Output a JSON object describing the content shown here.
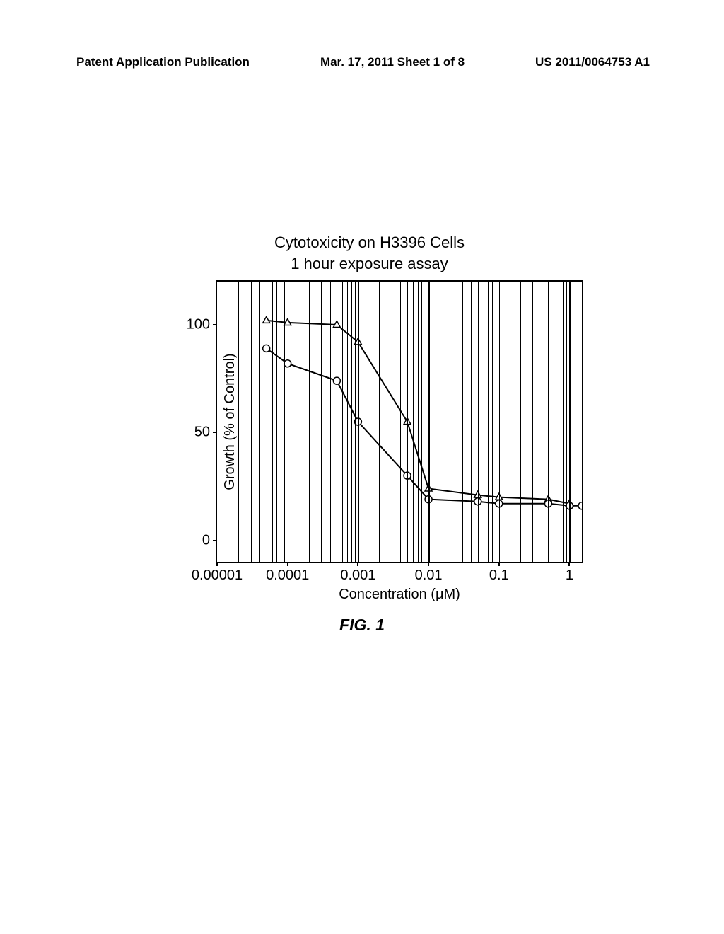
{
  "header": {
    "left": "Patent Application Publication",
    "center": "Mar. 17, 2011  Sheet 1 of 8",
    "right": "US 2011/0064753 A1"
  },
  "chart": {
    "type": "line",
    "title": "Cytotoxicity on H3396 Cells",
    "subtitle": "1 hour exposure assay",
    "xlabel": "Concentration (μM)",
    "ylabel": "Growth (% of Control)",
    "xscale": "log",
    "xlim": [
      1e-05,
      1.5
    ],
    "ylim": [
      -10,
      120
    ],
    "yticks": [
      0,
      50,
      100
    ],
    "xticks": [
      1e-05,
      0.0001,
      0.001,
      0.01,
      0.1,
      1
    ],
    "xtick_labels": [
      "0.00001",
      "0.0001",
      "0.001",
      "0.01",
      "0.1",
      "1"
    ],
    "log_minor_gridlines": true,
    "background_color": "#ffffff",
    "border_color": "#000000",
    "grid_color": "#000000",
    "line_color": "#000000",
    "line_width": 2,
    "marker_size": 10,
    "label_fontsize": 20,
    "title_fontsize": 22,
    "series": [
      {
        "name": "series-triangle",
        "marker": "triangle",
        "marker_fill": "#ffffff",
        "marker_stroke": "#000000",
        "x": [
          5e-05,
          0.0001,
          0.0005,
          0.001,
          0.005,
          0.01,
          0.05,
          0.1,
          0.5,
          1
        ],
        "y": [
          102,
          101,
          100,
          92,
          55,
          24,
          21,
          20,
          19,
          17
        ]
      },
      {
        "name": "series-circle",
        "marker": "circle",
        "marker_fill": "#ffffff",
        "marker_stroke": "#000000",
        "x": [
          5e-05,
          0.0001,
          0.0005,
          0.001,
          0.005,
          0.01,
          0.05,
          0.1,
          0.5,
          1,
          1.5
        ],
        "y": [
          89,
          82,
          74,
          55,
          30,
          19,
          18,
          17,
          17,
          16,
          16
        ]
      }
    ]
  },
  "figure_caption": "FIG. 1"
}
